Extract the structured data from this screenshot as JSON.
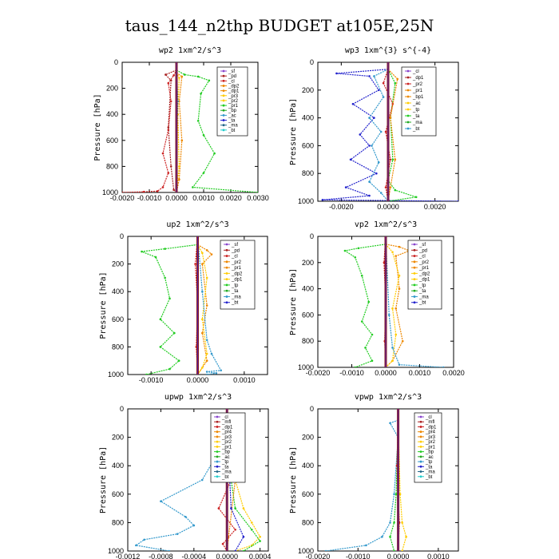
{
  "figure_title": "taus_144_n2thp  BUDGET at105E,25N",
  "chart_data": [
    {
      "type": "line",
      "title": "wp2   1xm^2/s^3",
      "ylabel": "Pressure [hPa]",
      "xlim": [
        -0.002,
        0.003
      ],
      "ylim": [
        0,
        1000
      ],
      "xticks": [
        "-0.0020",
        "-0.0010",
        "0.0000",
        "0.0010",
        "0.0020",
        "0.0030"
      ],
      "xtick_values": [
        -0.002,
        -0.001,
        0,
        0.001,
        0.002,
        0.003
      ],
      "yticks": [
        "0",
        "200",
        "400",
        "600",
        "800",
        "1000"
      ],
      "ytick_values": [
        0,
        200,
        400,
        600,
        800,
        1000
      ],
      "legend": [
        "_sf",
        "_pd",
        "_cl",
        "_dp2",
        "_dp1",
        "_pr3",
        "_pr2",
        "_pr1",
        "_bp",
        "_ac",
        "_ta",
        "_ma",
        "_bt"
      ],
      "series": [
        {
          "name": "_pd",
          "color": "#cc2222",
          "x": [
            -0.002,
            -0.0012,
            -0.0007,
            -0.0005,
            -0.0003,
            -0.0005,
            -0.0003,
            -0.0002,
            -0.0003,
            -0.0001,
            0
          ],
          "y": [
            1000,
            995,
            990,
            960,
            850,
            700,
            520,
            300,
            160,
            100,
            60
          ]
        },
        {
          "name": "_pr1",
          "color": "#22cc22",
          "x": [
            0,
            0.0003,
            0.0008,
            0.0012,
            0.0009,
            0.0008,
            0.001,
            0.0014,
            0.001,
            0.0006,
            0.003
          ],
          "y": [
            60,
            95,
            110,
            140,
            240,
            450,
            560,
            700,
            850,
            960,
            1000
          ]
        },
        {
          "name": "_dp1",
          "color": "#aa2222",
          "x": [
            0,
            -0.0004,
            -0.0002,
            -0.0003,
            -0.0002,
            -0.0001,
            0
          ],
          "y": [
            60,
            95,
            140,
            500,
            800,
            980,
            1000
          ]
        },
        {
          "name": "_dp2",
          "color": "#ee8800",
          "x": [
            0,
            0.0002,
            0.0001,
            0.0002,
            0.0001,
            0
          ],
          "y": [
            80,
            110,
            300,
            600,
            900,
            1000
          ]
        },
        {
          "name": "_pr3",
          "color": "#ffcc00",
          "x": [
            0,
            0.0001,
            5e-05,
            0.0001,
            0
          ],
          "y": [
            80,
            120,
            400,
            800,
            1000
          ]
        },
        {
          "name": "_ac",
          "color": "#3399cc",
          "x": [
            0,
            5e-05,
            0,
            0
          ],
          "y": [
            0,
            300,
            700,
            1000
          ]
        },
        {
          "name": "_bt",
          "color": "#22cccc",
          "x": [
            0,
            0,
            0
          ],
          "y": [
            0,
            500,
            1000
          ]
        },
        {
          "name": "_sf",
          "color": "#4444cc",
          "x": [
            0,
            0,
            0
          ],
          "y": [
            0,
            500,
            1000
          ]
        }
      ]
    },
    {
      "type": "line",
      "title": "wp3   1xm^{3} s^{-4}",
      "ylabel": "Pressure [hPa]",
      "xlim": [
        -0.003,
        0.003
      ],
      "ylim": [
        0,
        1000
      ],
      "xticks": [
        "-0.0020",
        "0.0000",
        "0.0020"
      ],
      "xtick_values": [
        -0.002,
        0,
        0.002
      ],
      "yticks": [
        "0",
        "200",
        "400",
        "600",
        "800",
        "1000"
      ],
      "ytick_values": [
        0,
        200,
        400,
        600,
        800,
        1000
      ],
      "legend": [
        "_cl",
        "_dp1",
        "_pr2",
        "_pr1",
        "_bp1",
        "_ac",
        "_tp",
        "_ta",
        "_ma",
        "_bt"
      ],
      "series": [
        {
          "name": "_ta",
          "color": "#2222cc",
          "x": [
            0,
            -0.0022,
            -0.0008,
            -0.0004,
            -0.0015,
            -0.0006,
            -0.0012,
            -0.0008,
            -0.0016,
            -0.0005,
            -0.0018,
            -0.0008,
            -0.0028,
            0.003
          ],
          "y": [
            50,
            80,
            100,
            200,
            300,
            400,
            520,
            600,
            700,
            800,
            900,
            960,
            990,
            1000
          ]
        },
        {
          "name": "_ac",
          "color": "#3399cc",
          "x": [
            0,
            -0.0006,
            -0.0002,
            -0.0008,
            -0.0003,
            -0.0007,
            -0.0004,
            -0.0008,
            -0.0003,
            0
          ],
          "y": [
            50,
            100,
            250,
            400,
            500,
            600,
            720,
            860,
            940,
            1000
          ]
        },
        {
          "name": "_pr1",
          "color": "#22cc22",
          "x": [
            0,
            0.0003,
            0.0001,
            0.0002,
            0,
            0.0003,
            0.0012,
            0
          ],
          "y": [
            50,
            150,
            400,
            700,
            850,
            920,
            970,
            1000
          ]
        },
        {
          "name": "_dp1",
          "color": "#cc2222",
          "x": [
            0,
            -0.0002,
            0.0002,
            -0.0001,
            0.0001,
            -0.0001,
            0
          ],
          "y": [
            50,
            150,
            300,
            500,
            700,
            900,
            1000
          ]
        },
        {
          "name": "_pr2",
          "color": "#ee8800",
          "x": [
            0,
            0.0004,
            0.0001,
            0.0003,
            0.0001,
            0
          ],
          "y": [
            50,
            120,
            400,
            700,
            900,
            1000
          ]
        },
        {
          "name": "_bt",
          "color": "#22cccc",
          "x": [
            0,
            0,
            0
          ],
          "y": [
            0,
            500,
            1000
          ]
        }
      ]
    },
    {
      "type": "line",
      "title": "up2   1xm^2/s^3",
      "ylabel": "Pressure [hPa]",
      "xlim": [
        -0.0015,
        0.0015
      ],
      "ylim": [
        0,
        1000
      ],
      "xticks": [
        "-0.0010",
        "0.0000",
        "0.0010"
      ],
      "xtick_values": [
        -0.001,
        0,
        0.001
      ],
      "yticks": [
        "0",
        "200",
        "400",
        "600",
        "800",
        "1000"
      ],
      "ytick_values": [
        0,
        200,
        400,
        600,
        800,
        1000
      ],
      "legend": [
        "_sf",
        "_pd",
        "_cl",
        "_pr2",
        "_pr1",
        "_dp2",
        "_dp1",
        "_tp",
        "_ta",
        "_ma",
        "_bt"
      ],
      "series": [
        {
          "name": "_pr1",
          "color": "#22cc22",
          "x": [
            0,
            -0.0007,
            -0.0012,
            -0.0009,
            -0.0007,
            -0.0006,
            -0.0008,
            -0.0005,
            -0.0008,
            -0.0004,
            -0.0006,
            -0.0011
          ],
          "y": [
            60,
            90,
            110,
            150,
            300,
            450,
            600,
            700,
            800,
            900,
            960,
            1000
          ]
        },
        {
          "name": "_pd",
          "color": "#ee8800",
          "x": [
            0,
            0.0002,
            0.0003,
            0.0001,
            0.0002,
            0.0001,
            0.0002,
            0
          ],
          "y": [
            60,
            100,
            130,
            200,
            500,
            700,
            900,
            1000
          ]
        },
        {
          "name": "_pr2",
          "color": "#ffcc00",
          "x": [
            0,
            0.0001,
            0.0002,
            0.0001,
            0.0002,
            0.0001,
            0
          ],
          "y": [
            60,
            120,
            300,
            600,
            850,
            950,
            1000
          ]
        },
        {
          "name": "_ta",
          "color": "#3399cc",
          "x": [
            0,
            0.0001,
            0.0002,
            0.0003,
            0.0005,
            0.0002,
            0.0004,
            0.0002
          ],
          "y": [
            0,
            400,
            750,
            850,
            970,
            980,
            990,
            1000
          ]
        },
        {
          "name": "_cl",
          "color": "#cc2222",
          "x": [
            0,
            -5e-05,
            0,
            -3e-05,
            0
          ],
          "y": [
            0,
            200,
            500,
            800,
            1000
          ]
        },
        {
          "name": "_bt",
          "color": "#22cccc",
          "x": [
            0,
            0,
            0
          ],
          "y": [
            0,
            500,
            1000
          ]
        }
      ]
    },
    {
      "type": "line",
      "title": "vp2   1xm^2/s^3",
      "ylabel": "Pressure [hPa]",
      "xlim": [
        -0.002,
        0.002
      ],
      "ylim": [
        0,
        1000
      ],
      "xticks": [
        "-0.0020",
        "-0.0010",
        "0.0000",
        "0.0010",
        "0.0020"
      ],
      "xtick_values": [
        -0.002,
        -0.001,
        0,
        0.001,
        0.002
      ],
      "yticks": [
        "0",
        "200",
        "400",
        "600",
        "800",
        "1000"
      ],
      "ytick_values": [
        0,
        200,
        400,
        600,
        800,
        1000
      ],
      "legend": [
        "_sf",
        "_pd",
        "_cl",
        "_pr2",
        "_pr1",
        "_dp2",
        "_dp1",
        "_tp",
        "_ta",
        "_ma",
        "_bt"
      ],
      "series": [
        {
          "name": "_pr1",
          "color": "#22cc22",
          "x": [
            0,
            -0.0008,
            -0.0012,
            -0.0009,
            -0.0007,
            -0.0005,
            -0.0007,
            -0.0004,
            -0.0006,
            -0.0004,
            -0.0009
          ],
          "y": [
            60,
            90,
            110,
            160,
            300,
            500,
            650,
            750,
            850,
            950,
            1000
          ]
        },
        {
          "name": "_pd",
          "color": "#ee8800",
          "x": [
            0,
            0.0004,
            0.0007,
            0.0003,
            0.0004,
            0.0003,
            0.0005,
            0.0002,
            0
          ],
          "y": [
            60,
            80,
            110,
            150,
            400,
            550,
            800,
            950,
            1000
          ]
        },
        {
          "name": "_pr2",
          "color": "#ffcc00",
          "x": [
            0,
            0.0002,
            0.0004,
            0.0002,
            0.0003,
            0.0002,
            0
          ],
          "y": [
            60,
            120,
            300,
            550,
            750,
            950,
            1000
          ]
        },
        {
          "name": "_ta",
          "color": "#3399cc",
          "x": [
            0,
            0.0001,
            0.0002,
            0.0004,
            0.0017
          ],
          "y": [
            0,
            600,
            850,
            980,
            1000
          ]
        },
        {
          "name": "_cl",
          "color": "#cc2222",
          "x": [
            0,
            -5e-05,
            0,
            -3e-05,
            0
          ],
          "y": [
            0,
            200,
            500,
            800,
            1000
          ]
        },
        {
          "name": "_bt",
          "color": "#22cccc",
          "x": [
            0,
            0,
            0
          ],
          "y": [
            0,
            500,
            1000
          ]
        }
      ]
    },
    {
      "type": "line",
      "title": "upwp   1xm^2/s^3",
      "ylabel": "Pressure [hPa]",
      "xlim": [
        -0.0012,
        0.0005
      ],
      "ylim": [
        0,
        1000
      ],
      "xticks": [
        "-0.0012",
        "-0.0008",
        "-0.0004",
        "0.0000",
        "0.0004"
      ],
      "xtick_values": [
        -0.0012,
        -0.0008,
        -0.0004,
        0,
        0.0004
      ],
      "yticks": [
        "0",
        "200",
        "400",
        "600",
        "800",
        "1000"
      ],
      "ytick_values": [
        0,
        200,
        400,
        600,
        800,
        1000
      ],
      "legend": [
        "_cl",
        "_mfl",
        "_dp1",
        "_pr4",
        "_pr3",
        "_pr2",
        "_pr1",
        "_bp",
        "_ac",
        "_tp",
        "_ta",
        "_ma",
        "_bt"
      ],
      "series": [
        {
          "name": "_ac",
          "color": "#3399cc",
          "x": [
            0,
            -0.0001,
            -0.0003,
            -0.0008,
            -0.0005,
            -0.0004,
            -0.0006,
            -0.001,
            -0.0011,
            -0.0007
          ],
          "y": [
            80,
            300,
            500,
            650,
            760,
            820,
            880,
            920,
            960,
            1000
          ]
        },
        {
          "name": "_pr1",
          "color": "#ffcc00",
          "x": [
            0,
            0.0001,
            0.0002,
            0.0003,
            0.0004,
            0.0003,
            0.0001
          ],
          "y": [
            80,
            500,
            700,
            800,
            900,
            960,
            1000
          ]
        },
        {
          "name": "_pr2",
          "color": "#22cc22",
          "x": [
            0,
            5e-05,
            0.0001,
            0.0003,
            0.0004,
            0.0002
          ],
          "y": [
            80,
            500,
            700,
            850,
            930,
            1000
          ]
        },
        {
          "name": "_dp1",
          "color": "#cc2222",
          "x": [
            0,
            -8e-05,
            5e-05,
            -0.0001,
            0.0001,
            -5e-05,
            0
          ],
          "y": [
            80,
            300,
            500,
            700,
            850,
            950,
            1000
          ]
        },
        {
          "name": "_pr3",
          "color": "#ee8800",
          "x": [
            0,
            -0.0001,
            0.0001,
            0
          ],
          "y": [
            80,
            120,
            500,
            1000
          ]
        },
        {
          "name": "_ta",
          "color": "#2222cc",
          "x": [
            0,
            5e-05,
            0.0002,
            0.0001
          ],
          "y": [
            80,
            700,
            900,
            1000
          ]
        },
        {
          "name": "_bt",
          "color": "#22cccc",
          "x": [
            0,
            0,
            0
          ],
          "y": [
            0,
            500,
            1000
          ]
        }
      ]
    },
    {
      "type": "line",
      "title": "vpwp   1xm^2/s^3",
      "ylabel": "Pressure [hPa]",
      "xlim": [
        -0.002,
        0.0015
      ],
      "ylim": [
        0,
        1000
      ],
      "xticks": [
        "-0.0020",
        "-0.0010",
        "0.0000",
        "0.0010"
      ],
      "xtick_values": [
        -0.002,
        -0.001,
        0,
        0.001
      ],
      "yticks": [
        "0",
        "200",
        "400",
        "600",
        "800",
        "1000"
      ],
      "ytick_values": [
        0,
        200,
        400,
        600,
        800,
        1000
      ],
      "legend": [
        "_cl",
        "_mfl",
        "_dp1",
        "_pr4",
        "_pr3",
        "_pr2",
        "_pr1",
        "_bp",
        "_ac",
        "_tp",
        "_ta",
        "_ma",
        "_bt"
      ],
      "series": [
        {
          "name": "_ac",
          "color": "#3399cc",
          "x": [
            0,
            -0.0002,
            0,
            -0.0001,
            -0.0002,
            -0.0004,
            -0.0008,
            -0.0018
          ],
          "y": [
            80,
            100,
            200,
            600,
            800,
            900,
            960,
            1000
          ]
        },
        {
          "name": "_pr1",
          "color": "#22cc22",
          "x": [
            0,
            -5e-05,
            -0.0001,
            -0.0002,
            -0.0001
          ],
          "y": [
            80,
            600,
            800,
            900,
            1000
          ]
        },
        {
          "name": "_pr2",
          "color": "#ffcc00",
          "x": [
            0,
            5e-05,
            0.0001,
            0.0002,
            0.0001
          ],
          "y": [
            80,
            600,
            800,
            900,
            1000
          ]
        },
        {
          "name": "_dp1",
          "color": "#cc2222",
          "x": [
            0,
            -3e-05,
            3e-05,
            0
          ],
          "y": [
            80,
            400,
            800,
            1000
          ]
        },
        {
          "name": "_bt",
          "color": "#22cccc",
          "x": [
            0,
            0,
            0
          ],
          "y": [
            0,
            500,
            1000
          ]
        }
      ]
    }
  ]
}
